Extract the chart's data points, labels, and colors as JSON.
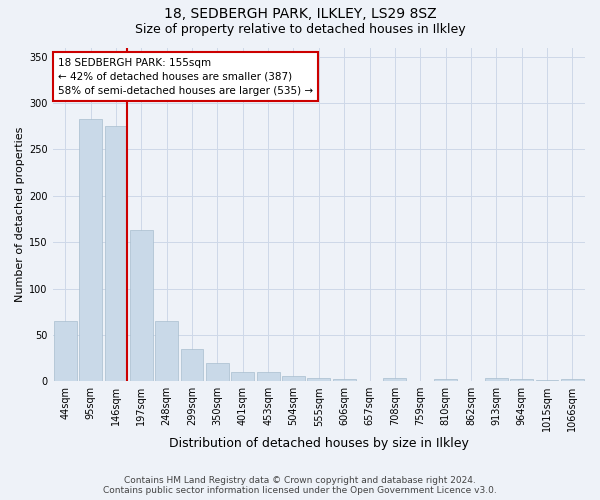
{
  "title": "18, SEDBERGH PARK, ILKLEY, LS29 8SZ",
  "subtitle": "Size of property relative to detached houses in Ilkley",
  "xlabel": "Distribution of detached houses by size in Ilkley",
  "ylabel": "Number of detached properties",
  "footer_line1": "Contains HM Land Registry data © Crown copyright and database right 2024.",
  "footer_line2": "Contains public sector information licensed under the Open Government Licence v3.0.",
  "bar_labels": [
    "44sqm",
    "95sqm",
    "146sqm",
    "197sqm",
    "248sqm",
    "299sqm",
    "350sqm",
    "401sqm",
    "453sqm",
    "504sqm",
    "555sqm",
    "606sqm",
    "657sqm",
    "708sqm",
    "759sqm",
    "810sqm",
    "862sqm",
    "913sqm",
    "964sqm",
    "1015sqm",
    "1066sqm"
  ],
  "bar_values": [
    65,
    283,
    275,
    163,
    65,
    35,
    20,
    10,
    10,
    6,
    4,
    2,
    0,
    3,
    0,
    2,
    0,
    3,
    2,
    1,
    2
  ],
  "bar_color": "#c9d9e8",
  "bar_edge_color": "#a8bece",
  "property_line_index": 2,
  "property_line_label": "18 SEDBERGH PARK: 155sqm",
  "annotation_line2": "← 42% of detached houses are smaller (387)",
  "annotation_line3": "58% of semi-detached houses are larger (535) →",
  "annotation_box_facecolor": "#ffffff",
  "annotation_box_edgecolor": "#cc0000",
  "vline_color": "#cc0000",
  "ylim": [
    0,
    360
  ],
  "yticks": [
    0,
    50,
    100,
    150,
    200,
    250,
    300,
    350
  ],
  "grid_color": "#cdd8e8",
  "background_color": "#eef2f8",
  "title_fontsize": 10,
  "subtitle_fontsize": 9,
  "xlabel_fontsize": 9,
  "ylabel_fontsize": 8,
  "tick_fontsize": 7,
  "annotation_fontsize": 7.5,
  "footer_fontsize": 6.5
}
